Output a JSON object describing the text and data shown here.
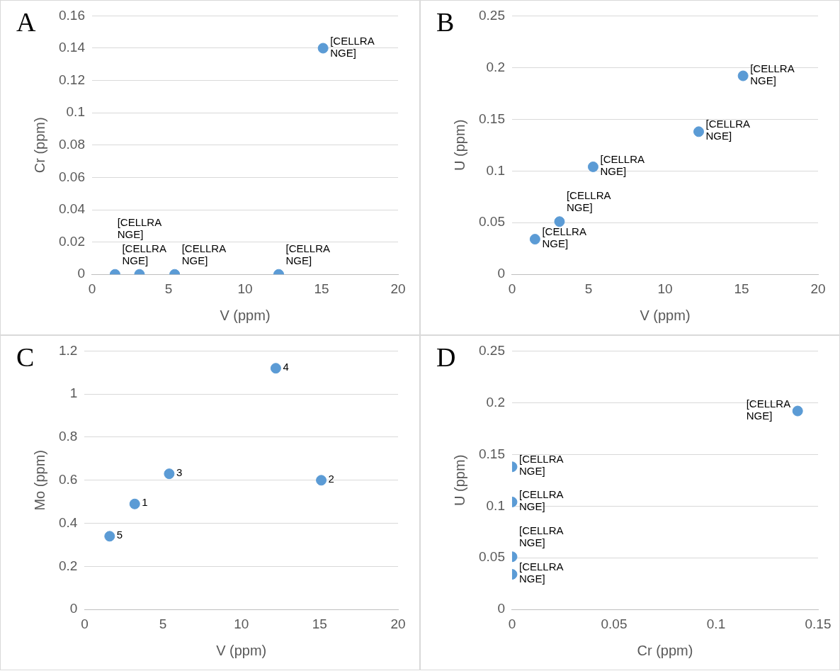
{
  "chart_data": [
    {
      "type": "scatter",
      "title": "A",
      "xlabel": "V (ppm)",
      "ylabel": "Cr (ppm)",
      "xlim": [
        0,
        20
      ],
      "xticks": [
        0,
        5,
        10,
        15,
        20
      ],
      "ylim": [
        0,
        0.16
      ],
      "yticks": [
        0,
        0.02,
        0.04,
        0.06,
        0.08,
        0.1,
        0.12,
        0.14,
        0.16
      ],
      "grid": "y",
      "marker": "circle",
      "legend": false,
      "series": [
        {
          "color": "#5b9bd5",
          "x": [
            1.5,
            3.1,
            5.4,
            12.2,
            15.1
          ],
          "values": [
            0,
            0,
            0,
            0,
            0.14
          ],
          "value_labels": [
            "[CELLRANGE]",
            "[CELLRANGE]",
            "[CELLRANGE]",
            "[CELLRANGE]",
            "[CELLRANGE]"
          ]
        }
      ]
    },
    {
      "type": "scatter",
      "title": "B",
      "xlabel": "V (ppm)",
      "ylabel": "U (ppm)",
      "xlim": [
        0,
        20
      ],
      "xticks": [
        0,
        5,
        10,
        15,
        20
      ],
      "ylim": [
        0,
        0.25
      ],
      "yticks": [
        0,
        0.05,
        0.1,
        0.15,
        0.2,
        0.25
      ],
      "grid": "y",
      "marker": "circle",
      "legend": false,
      "series": [
        {
          "color": "#5b9bd5",
          "x": [
            1.5,
            3.1,
            5.3,
            12.2,
            15.1
          ],
          "values": [
            0.034,
            0.051,
            0.104,
            0.138,
            0.192
          ],
          "value_labels": [
            "[CELLRANGE]",
            "[CELLRANGE]",
            "[CELLRANGE]",
            "[CELLRANGE]",
            "[CELLRANGE]"
          ]
        }
      ]
    },
    {
      "type": "scatter",
      "title": "C",
      "xlabel": "V (ppm)",
      "ylabel": "Mo (ppm)",
      "xlim": [
        0,
        20
      ],
      "xticks": [
        0,
        5,
        10,
        15,
        20
      ],
      "ylim": [
        0,
        1.2
      ],
      "yticks": [
        0,
        0.2,
        0.4,
        0.6,
        0.8,
        1,
        1.2
      ],
      "grid": "y",
      "marker": "circle",
      "legend": false,
      "annotations": [
        {
          "text": "5",
          "x": 1.6,
          "y": 0.34
        },
        {
          "text": "1",
          "x": 3.2,
          "y": 0.49
        },
        {
          "text": "3",
          "x": 5.4,
          "y": 0.63
        },
        {
          "text": "4",
          "x": 12.2,
          "y": 1.12
        },
        {
          "text": "2",
          "x": 15.1,
          "y": 0.6
        }
      ],
      "series": [
        {
          "color": "#5b9bd5",
          "x": [
            1.6,
            3.2,
            5.4,
            12.2,
            15.1
          ],
          "values": [
            0.34,
            0.49,
            0.63,
            1.12,
            0.6
          ]
        }
      ]
    },
    {
      "type": "scatter",
      "title": "D",
      "xlabel": "Cr (ppm)",
      "ylabel": "U (ppm)",
      "xlim": [
        0,
        0.15
      ],
      "xticks": [
        0,
        0.05,
        0.1,
        0.15
      ],
      "ylim": [
        0,
        0.25
      ],
      "yticks": [
        0,
        0.05,
        0.1,
        0.15,
        0.2,
        0.25
      ],
      "grid": "y",
      "marker": "circle",
      "legend": false,
      "series": [
        {
          "color": "#5b9bd5",
          "x": [
            0,
            0,
            0,
            0,
            0.14
          ],
          "values": [
            0.034,
            0.051,
            0.104,
            0.138,
            0.192
          ],
          "value_labels": [
            "[CELLRANGE]",
            "[CELLRANGE]",
            "[CELLRANGE]",
            "[CELLRANGE]",
            "[CELLRANGE]"
          ]
        }
      ]
    }
  ]
}
